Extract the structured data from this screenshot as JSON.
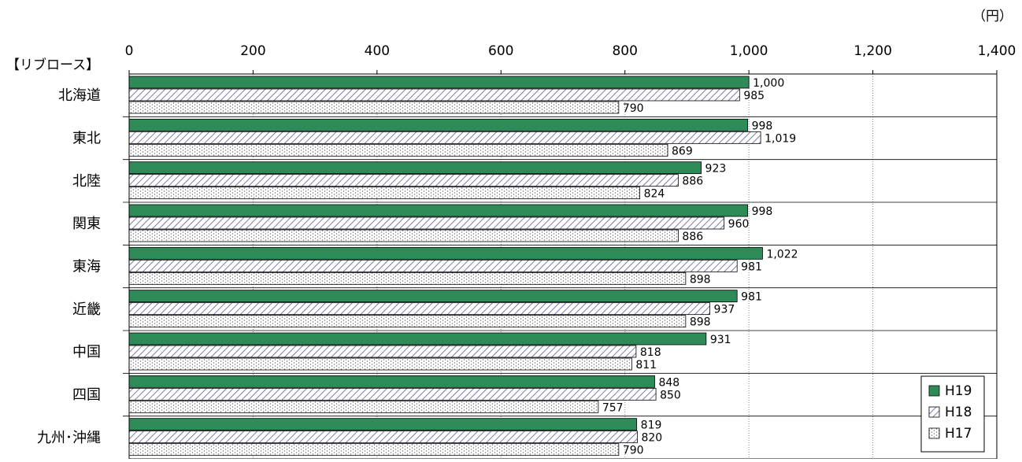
{
  "chart_data": {
    "type": "bar",
    "orientation": "horizontal",
    "unit": "（円）",
    "section_label": "【リブロース】",
    "categories": [
      "北海道",
      "東北",
      "北陸",
      "関東",
      "東海",
      "近畿",
      "中国",
      "四国",
      "九州･沖縄"
    ],
    "series": [
      {
        "name": "H19",
        "values": [
          1000,
          998,
          923,
          998,
          1022,
          981,
          931,
          848,
          819
        ],
        "value_labels": [
          "1,000",
          "998",
          "923",
          "998",
          "1,022",
          "981",
          "931",
          "848",
          "819"
        ],
        "pattern": "solid",
        "color": "#2e8b57"
      },
      {
        "name": "H18",
        "values": [
          985,
          1019,
          886,
          960,
          981,
          937,
          818,
          850,
          820
        ],
        "value_labels": [
          "985",
          "1,019",
          "886",
          "960",
          "981",
          "937",
          "818",
          "850",
          "820"
        ],
        "pattern": "diagonal-hatch",
        "color": "#5a5a9a"
      },
      {
        "name": "H17",
        "values": [
          790,
          869,
          824,
          886,
          898,
          898,
          811,
          757,
          790
        ],
        "value_labels": [
          "790",
          "869",
          "824",
          "886",
          "898",
          "898",
          "811",
          "757",
          "790"
        ],
        "pattern": "dotted",
        "color": "#888888"
      }
    ],
    "xlim": [
      0,
      1400
    ],
    "x_ticks": [
      0,
      200,
      400,
      600,
      800,
      1000,
      1200,
      1400
    ],
    "x_tick_labels": [
      "0",
      "200",
      "400",
      "600",
      "800",
      "1,000",
      "1,200",
      "1,400"
    ],
    "grid": "vertical dotted lines",
    "legend_position": "bottom-right"
  }
}
